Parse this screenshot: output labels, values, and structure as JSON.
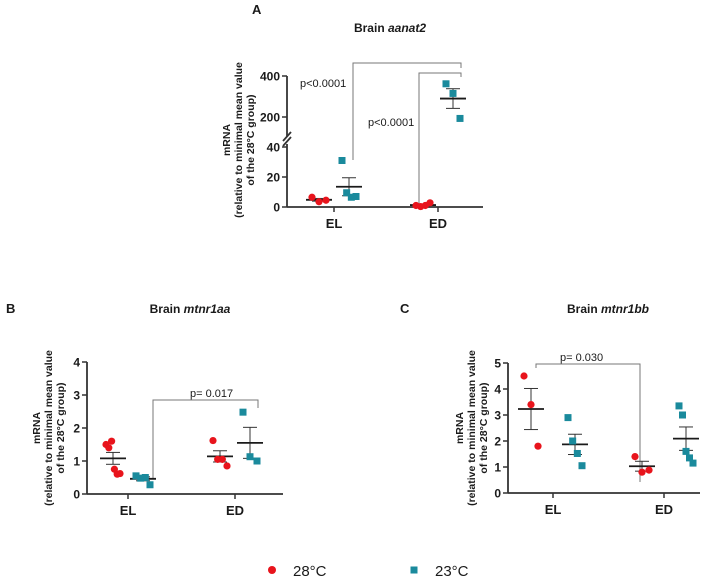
{
  "legend": {
    "items": [
      {
        "label": "28°C",
        "marker": "circle",
        "color": "#e8141c"
      },
      {
        "label": "23°C",
        "marker": "square",
        "color": "#1a8a9c"
      }
    ]
  },
  "chart_data": [
    {
      "panel": "A",
      "type": "scatter",
      "title_prefix": "Brain ",
      "title_gene": "aanat2",
      "ylabel_lines": [
        "mRNA",
        "(relative to minimal mean value",
        "of the 28°C group)"
      ],
      "categories": [
        "EL",
        "ED"
      ],
      "y_ticks": [
        0,
        20,
        40,
        200,
        400
      ],
      "y_axis_break": [
        40,
        200
      ],
      "ylim": [
        0,
        400
      ],
      "series": [
        {
          "name": "28°C",
          "color": "#e8141c",
          "marker": "circle",
          "groups": [
            {
              "category": "EL",
              "points": [
                6.5,
                3.5,
                4.5
              ],
              "mean": 4.8,
              "sem": 0.9
            },
            {
              "category": "ED",
              "points": [
                1.0,
                0.3,
                1.0,
                2.8
              ],
              "mean": 1.3,
              "sem": 0.5
            }
          ]
        },
        {
          "name": "23°C",
          "color": "#1a8a9c",
          "marker": "square",
          "groups": [
            {
              "category": "EL",
              "points": [
                31,
                9.5,
                6.5,
                7
              ],
              "mean": 13.5,
              "sem": 6
            },
            {
              "category": "ED",
              "points": [
                362,
                315,
                193
              ],
              "mean": 290,
              "sem": 48
            }
          ]
        }
      ],
      "comparisons": [
        {
          "label": "p<0.0001",
          "from": "EL 23°C",
          "to": "ED 23°C"
        },
        {
          "label": "p<0.0001",
          "from": "ED 28°C",
          "to": "ED 23°C"
        }
      ]
    },
    {
      "panel": "B",
      "type": "scatter",
      "title_prefix": "Brain ",
      "title_gene": "mtnr1aa",
      "ylabel_lines": [
        "mRNA",
        "(relative to minimal mean value",
        "of the 28°C group)"
      ],
      "categories": [
        "EL",
        "ED"
      ],
      "y_ticks": [
        0,
        1,
        2,
        3,
        4
      ],
      "ylim": [
        0,
        4
      ],
      "series": [
        {
          "name": "28°C",
          "color": "#e8141c",
          "marker": "circle",
          "groups": [
            {
              "category": "EL",
              "points": [
                1.5,
                1.4,
                1.6,
                0.75,
                0.6,
                0.62
              ],
              "mean": 1.08,
              "sem": 0.18
            },
            {
              "category": "ED",
              "points": [
                1.62,
                1.05,
                1.05,
                0.85
              ],
              "mean": 1.14,
              "sem": 0.17
            }
          ]
        },
        {
          "name": "23°C",
          "color": "#1a8a9c",
          "marker": "square",
          "groups": [
            {
              "category": "EL",
              "points": [
                0.55,
                0.48,
                0.5,
                0.28
              ],
              "mean": 0.46,
              "sem": 0.06
            },
            {
              "category": "ED",
              "points": [
                2.48,
                1.13,
                1.0
              ],
              "mean": 1.55,
              "sem": 0.47
            }
          ]
        }
      ],
      "comparisons": [
        {
          "label": "p= 0.017",
          "from": "EL 23°C",
          "to": "ED 23°C"
        }
      ]
    },
    {
      "panel": "C",
      "type": "scatter",
      "title_prefix": "Brain ",
      "title_gene": "mtnr1bb",
      "ylabel_lines": [
        "mRNA",
        "(relative to minimal mean value",
        "of the 28°C group)"
      ],
      "categories": [
        "EL",
        "ED"
      ],
      "y_ticks": [
        0,
        1,
        2,
        3,
        4,
        5
      ],
      "ylim": [
        0,
        5
      ],
      "series": [
        {
          "name": "28°C",
          "color": "#e8141c",
          "marker": "circle",
          "groups": [
            {
              "category": "EL",
              "points": [
                4.5,
                3.4,
                1.8
              ],
              "mean": 3.23,
              "sem": 0.79
            },
            {
              "category": "ED",
              "points": [
                1.4,
                0.8,
                0.88
              ],
              "mean": 1.03,
              "sem": 0.19
            }
          ]
        },
        {
          "name": "23°C",
          "color": "#1a8a9c",
          "marker": "square",
          "groups": [
            {
              "category": "EL",
              "points": [
                2.9,
                2.0,
                1.52,
                1.05
              ],
              "mean": 1.87,
              "sem": 0.39
            },
            {
              "category": "ED",
              "points": [
                3.35,
                3.0,
                1.6,
                1.35,
                1.15
              ],
              "mean": 2.09,
              "sem": 0.45
            }
          ]
        }
      ],
      "comparisons": [
        {
          "label": "p= 0.030",
          "from": "EL 28°C",
          "to": "ED 28°C"
        }
      ]
    }
  ]
}
